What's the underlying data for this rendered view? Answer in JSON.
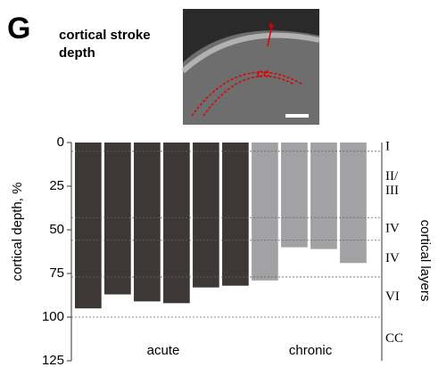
{
  "panel_letter": "G",
  "title_lines": [
    "cortical stroke",
    "depth"
  ],
  "image_label": "cc",
  "chart_data": {
    "type": "bar",
    "y_label": "cortical depth, %",
    "y2_label": "cortical layers",
    "ylim": [
      0,
      125
    ],
    "yticks": [
      0,
      25,
      50,
      75,
      100,
      125
    ],
    "y_inverted": true,
    "series": [
      {
        "name": "acute",
        "color": "#3d3735",
        "values": [
          95,
          87,
          91,
          92,
          83,
          82
        ]
      },
      {
        "name": "chronic",
        "color": "#a2a2a4",
        "values": [
          79,
          60,
          61,
          69
        ]
      }
    ],
    "layer_boundaries": [
      5,
      43,
      56,
      77,
      100
    ],
    "layers": [
      "I",
      "II/\nIII",
      "IV",
      "IV",
      "VI",
      "CC"
    ]
  }
}
